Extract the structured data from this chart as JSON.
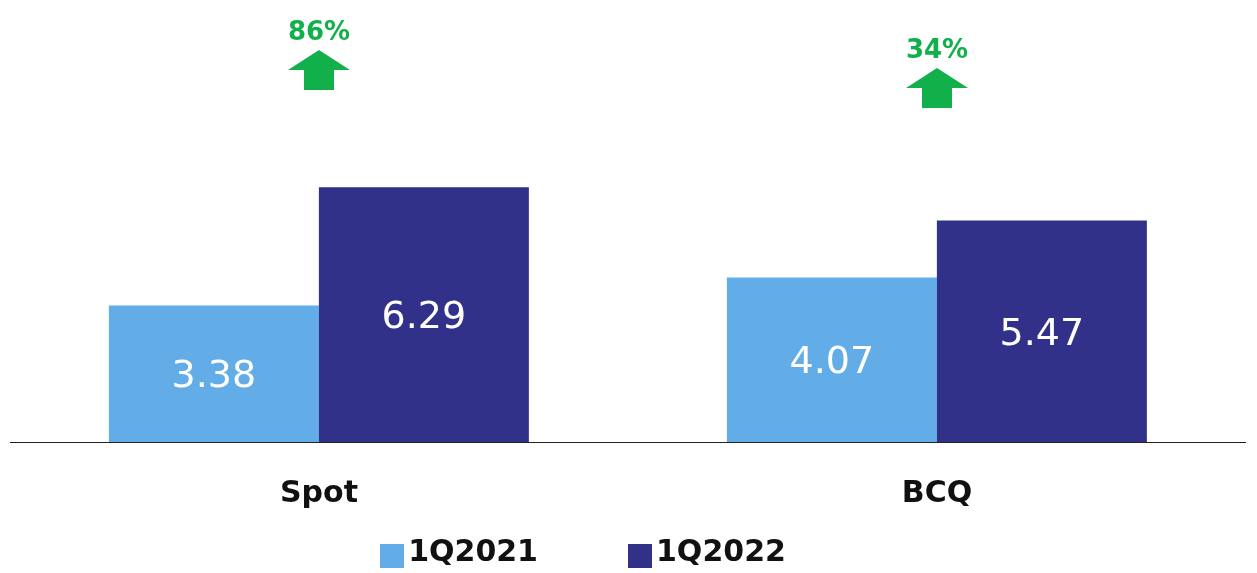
{
  "chart_data": {
    "type": "bar",
    "categories": [
      "Spot",
      "BCQ"
    ],
    "series": [
      {
        "name": "1Q2021",
        "color": "#62ade8",
        "values": [
          3.38,
          4.07
        ]
      },
      {
        "name": "1Q2022",
        "color": "#32318a",
        "values": [
          6.29,
          5.47
        ]
      }
    ],
    "data_labels": true,
    "legend": "bottom",
    "grid": false,
    "annotations": [
      "86%",
      "34%"
    ]
  }
}
